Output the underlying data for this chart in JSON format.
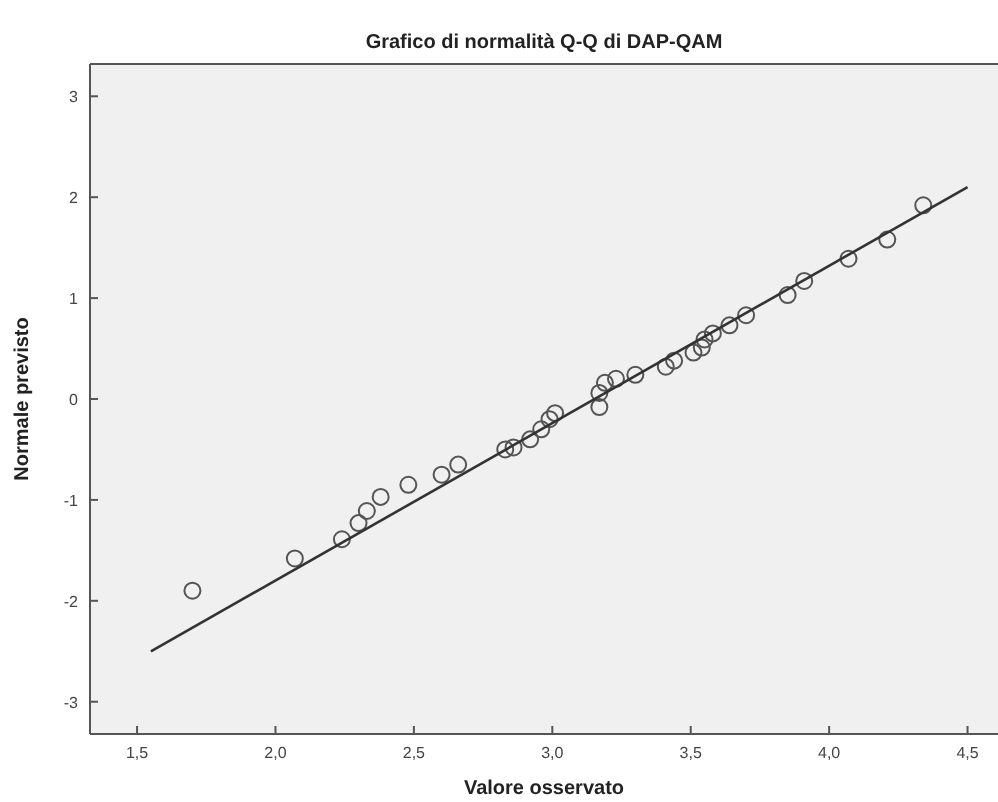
{
  "chart_data": {
    "type": "scatter",
    "title": "Grafico di normalità Q-Q di DAP-QAM",
    "xlabel": "Valore osservato",
    "ylabel": "Normale previsto",
    "xlim": [
      1.33,
      4.61
    ],
    "ylim": [
      -3.32,
      3.32
    ],
    "xticks": [
      {
        "value": 1.5,
        "label": "1,5"
      },
      {
        "value": 2.0,
        "label": "2,0"
      },
      {
        "value": 2.5,
        "label": "2,5"
      },
      {
        "value": 3.0,
        "label": "3,0"
      },
      {
        "value": 3.5,
        "label": "3,5"
      },
      {
        "value": 4.0,
        "label": "4,0"
      },
      {
        "value": 4.5,
        "label": "4,5"
      }
    ],
    "yticks": [
      -3,
      -2,
      -1,
      0,
      1,
      2,
      3
    ],
    "grid": false,
    "series": [
      {
        "marker": "circle",
        "color": "#555555",
        "x": [
          1.7,
          2.07,
          2.24,
          2.3,
          2.33,
          2.38,
          2.48,
          2.6,
          2.66,
          2.83,
          2.86,
          2.92,
          2.96,
          2.99,
          3.01,
          3.17,
          3.17,
          3.19,
          3.23,
          3.3,
          3.41,
          3.44,
          3.51,
          3.54,
          3.55,
          3.58,
          3.64,
          3.7,
          3.85,
          3.91,
          4.07,
          4.21,
          4.34
        ],
        "values": [
          -1.9,
          -1.58,
          -1.39,
          -1.23,
          -1.11,
          -0.97,
          -0.85,
          -0.75,
          -0.65,
          -0.5,
          -0.48,
          -0.4,
          -0.3,
          -0.2,
          -0.14,
          -0.08,
          0.06,
          0.16,
          0.2,
          0.24,
          0.32,
          0.38,
          0.46,
          0.51,
          0.59,
          0.65,
          0.73,
          0.83,
          1.03,
          1.17,
          1.39,
          1.58,
          1.92
        ]
      },
      {
        "type": "line",
        "marker": "none",
        "line_style": "solid",
        "color": "#333333",
        "x": [
          1.55,
          4.5
        ],
        "values": [
          -2.5,
          2.1
        ]
      }
    ]
  }
}
